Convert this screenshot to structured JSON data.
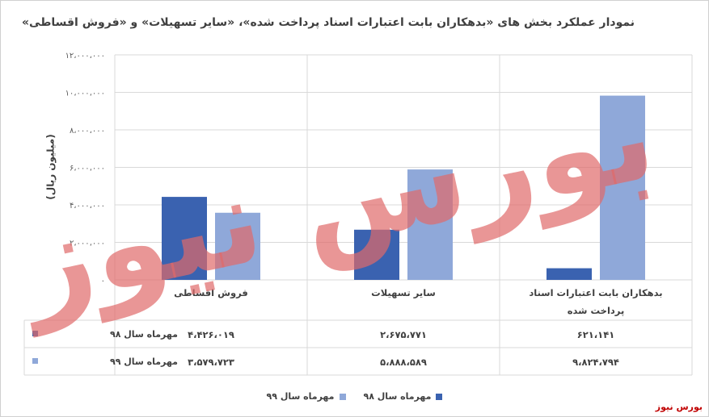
{
  "title": "نمودار عملکرد بخش های «بدهکاران بابت اعتبارات اسناد پرداخت شده»، «سایر تسهیلات» و «فروش اقساطی»",
  "watermark_text": "بورس نیوز",
  "brand": "بورس نیوز",
  "colors": {
    "series_98": "#3a62b0",
    "series_99": "#8fa8d9",
    "grid": "#d9d9d9",
    "watermark": "#e06a6a"
  },
  "chart_data": {
    "type": "bar",
    "title": "نمودار عملکرد بخش های «بدهکاران بابت اعتبارات اسناد پرداخت شده»، «سایر تسهیلات» و «فروش اقساطی»",
    "ylabel": "(میلیون ریال)",
    "xlabel": "",
    "ylim": [
      0,
      12000000
    ],
    "yticks": [
      0,
      2000000,
      4000000,
      6000000,
      8000000,
      10000000,
      12000000
    ],
    "ytick_labels": [
      "۰",
      "۲،۰۰۰،۰۰۰",
      "۴،۰۰۰،۰۰۰",
      "۶،۰۰۰،۰۰۰",
      "۸،۰۰۰،۰۰۰",
      "۱۰،۰۰۰،۰۰۰",
      "۱۲،۰۰۰،۰۰۰"
    ],
    "grid": true,
    "legend": "bottom",
    "categories": [
      [
        "بدهکاران بابت اعتبارات اسناد",
        "پرداخت شده"
      ],
      [
        "سایر تسهیلات"
      ],
      [
        "فروش اقساطی"
      ]
    ],
    "series": [
      {
        "name": "مهرماه سال ۹۸",
        "values": [
          621141,
          2675771,
          4426019
        ],
        "labels": [
          "۶۲۱،۱۴۱",
          "۲،۶۷۵،۷۷۱",
          "۴،۴۲۶،۰۱۹"
        ]
      },
      {
        "name": "مهرماه سال ۹۹",
        "values": [
          9824794,
          5888589,
          3579723
        ],
        "labels": [
          "۹،۸۲۴،۷۹۴",
          "۵،۸۸۸،۵۸۹",
          "۳،۵۷۹،۷۲۳"
        ]
      }
    ]
  }
}
